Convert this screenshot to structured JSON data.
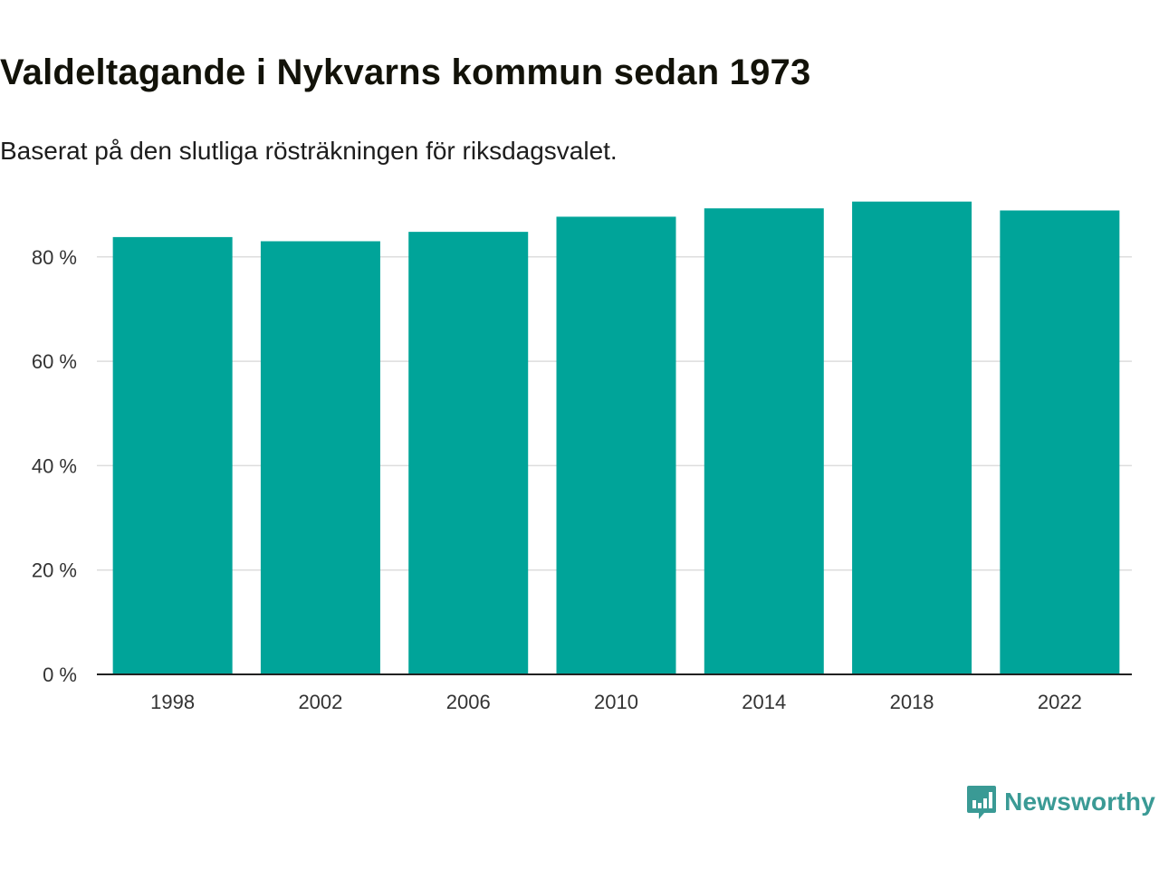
{
  "header": {
    "title": "Valdeltagande i Nykvarns kommun sedan 1973",
    "subtitle": "Baserat på den slutliga rösträkningen för riksdagsvalet."
  },
  "branding": {
    "name": "Newsworthy",
    "logo_icon": "bar-chart-speech-bubble-icon",
    "color": "#3a9a95"
  },
  "colors": {
    "bar": "#00a499",
    "grid": "#dddddd",
    "axis": "#222222"
  },
  "chart_data": {
    "type": "bar",
    "title": "Valdeltagande i Nykvarns kommun sedan 1973",
    "subtitle": "Baserat på den slutliga rösträkningen för riksdagsvalet.",
    "categories": [
      "1998",
      "2002",
      "2006",
      "2010",
      "2014",
      "2018",
      "2022"
    ],
    "values": [
      83.8,
      83.0,
      84.8,
      87.7,
      89.3,
      90.6,
      88.9
    ],
    "ylim": [
      0,
      90
    ],
    "yticks": [
      0,
      20,
      40,
      60,
      80
    ],
    "ytick_labels": [
      "0 %",
      "20 %",
      "40 %",
      "60 %",
      "80 %"
    ],
    "xlabel": "",
    "ylabel": "",
    "grid": true
  }
}
